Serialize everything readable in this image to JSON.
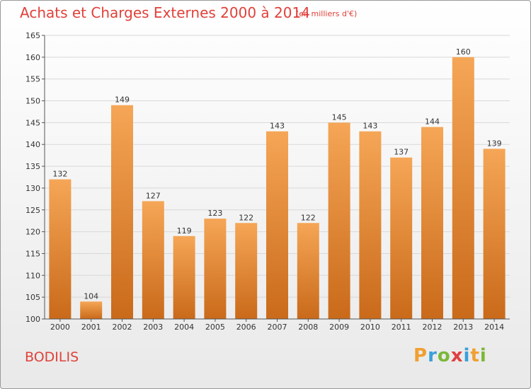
{
  "header": {
    "title": "Achats et Charges Externes 2000 à 2014",
    "subtitle": "(en milliers d'€)"
  },
  "footer": {
    "commune": "BODILIS",
    "logo": {
      "letters": [
        "P",
        "r",
        "o",
        "x",
        "i",
        "t",
        "i"
      ],
      "colors": [
        "#f0a030",
        "#3aa0d8",
        "#7ab83a",
        "#e04040",
        "#3aa0d8",
        "#f0a030",
        "#7ab83a"
      ]
    }
  },
  "chart_data": {
    "type": "bar",
    "categories": [
      "2000",
      "2001",
      "2002",
      "2003",
      "2004",
      "2005",
      "2006",
      "2007",
      "2008",
      "2009",
      "2010",
      "2011",
      "2012",
      "2013",
      "2014"
    ],
    "values": [
      132,
      104,
      149,
      127,
      119,
      123,
      122,
      143,
      122,
      145,
      143,
      137,
      144,
      160,
      139
    ],
    "title": "Achats et Charges Externes 2000 à 2014",
    "subtitle": "(en milliers d'€)",
    "ylim": [
      100,
      165
    ],
    "yticks": [
      100,
      105,
      110,
      115,
      120,
      125,
      130,
      135,
      140,
      145,
      150,
      155,
      160,
      165
    ],
    "grid": true,
    "colors": {
      "bar_top": "#f5a656",
      "bar_bottom": "#c96a1a",
      "grid": "#d8d8d8",
      "axis": "#555555",
      "text": "#333333"
    }
  }
}
